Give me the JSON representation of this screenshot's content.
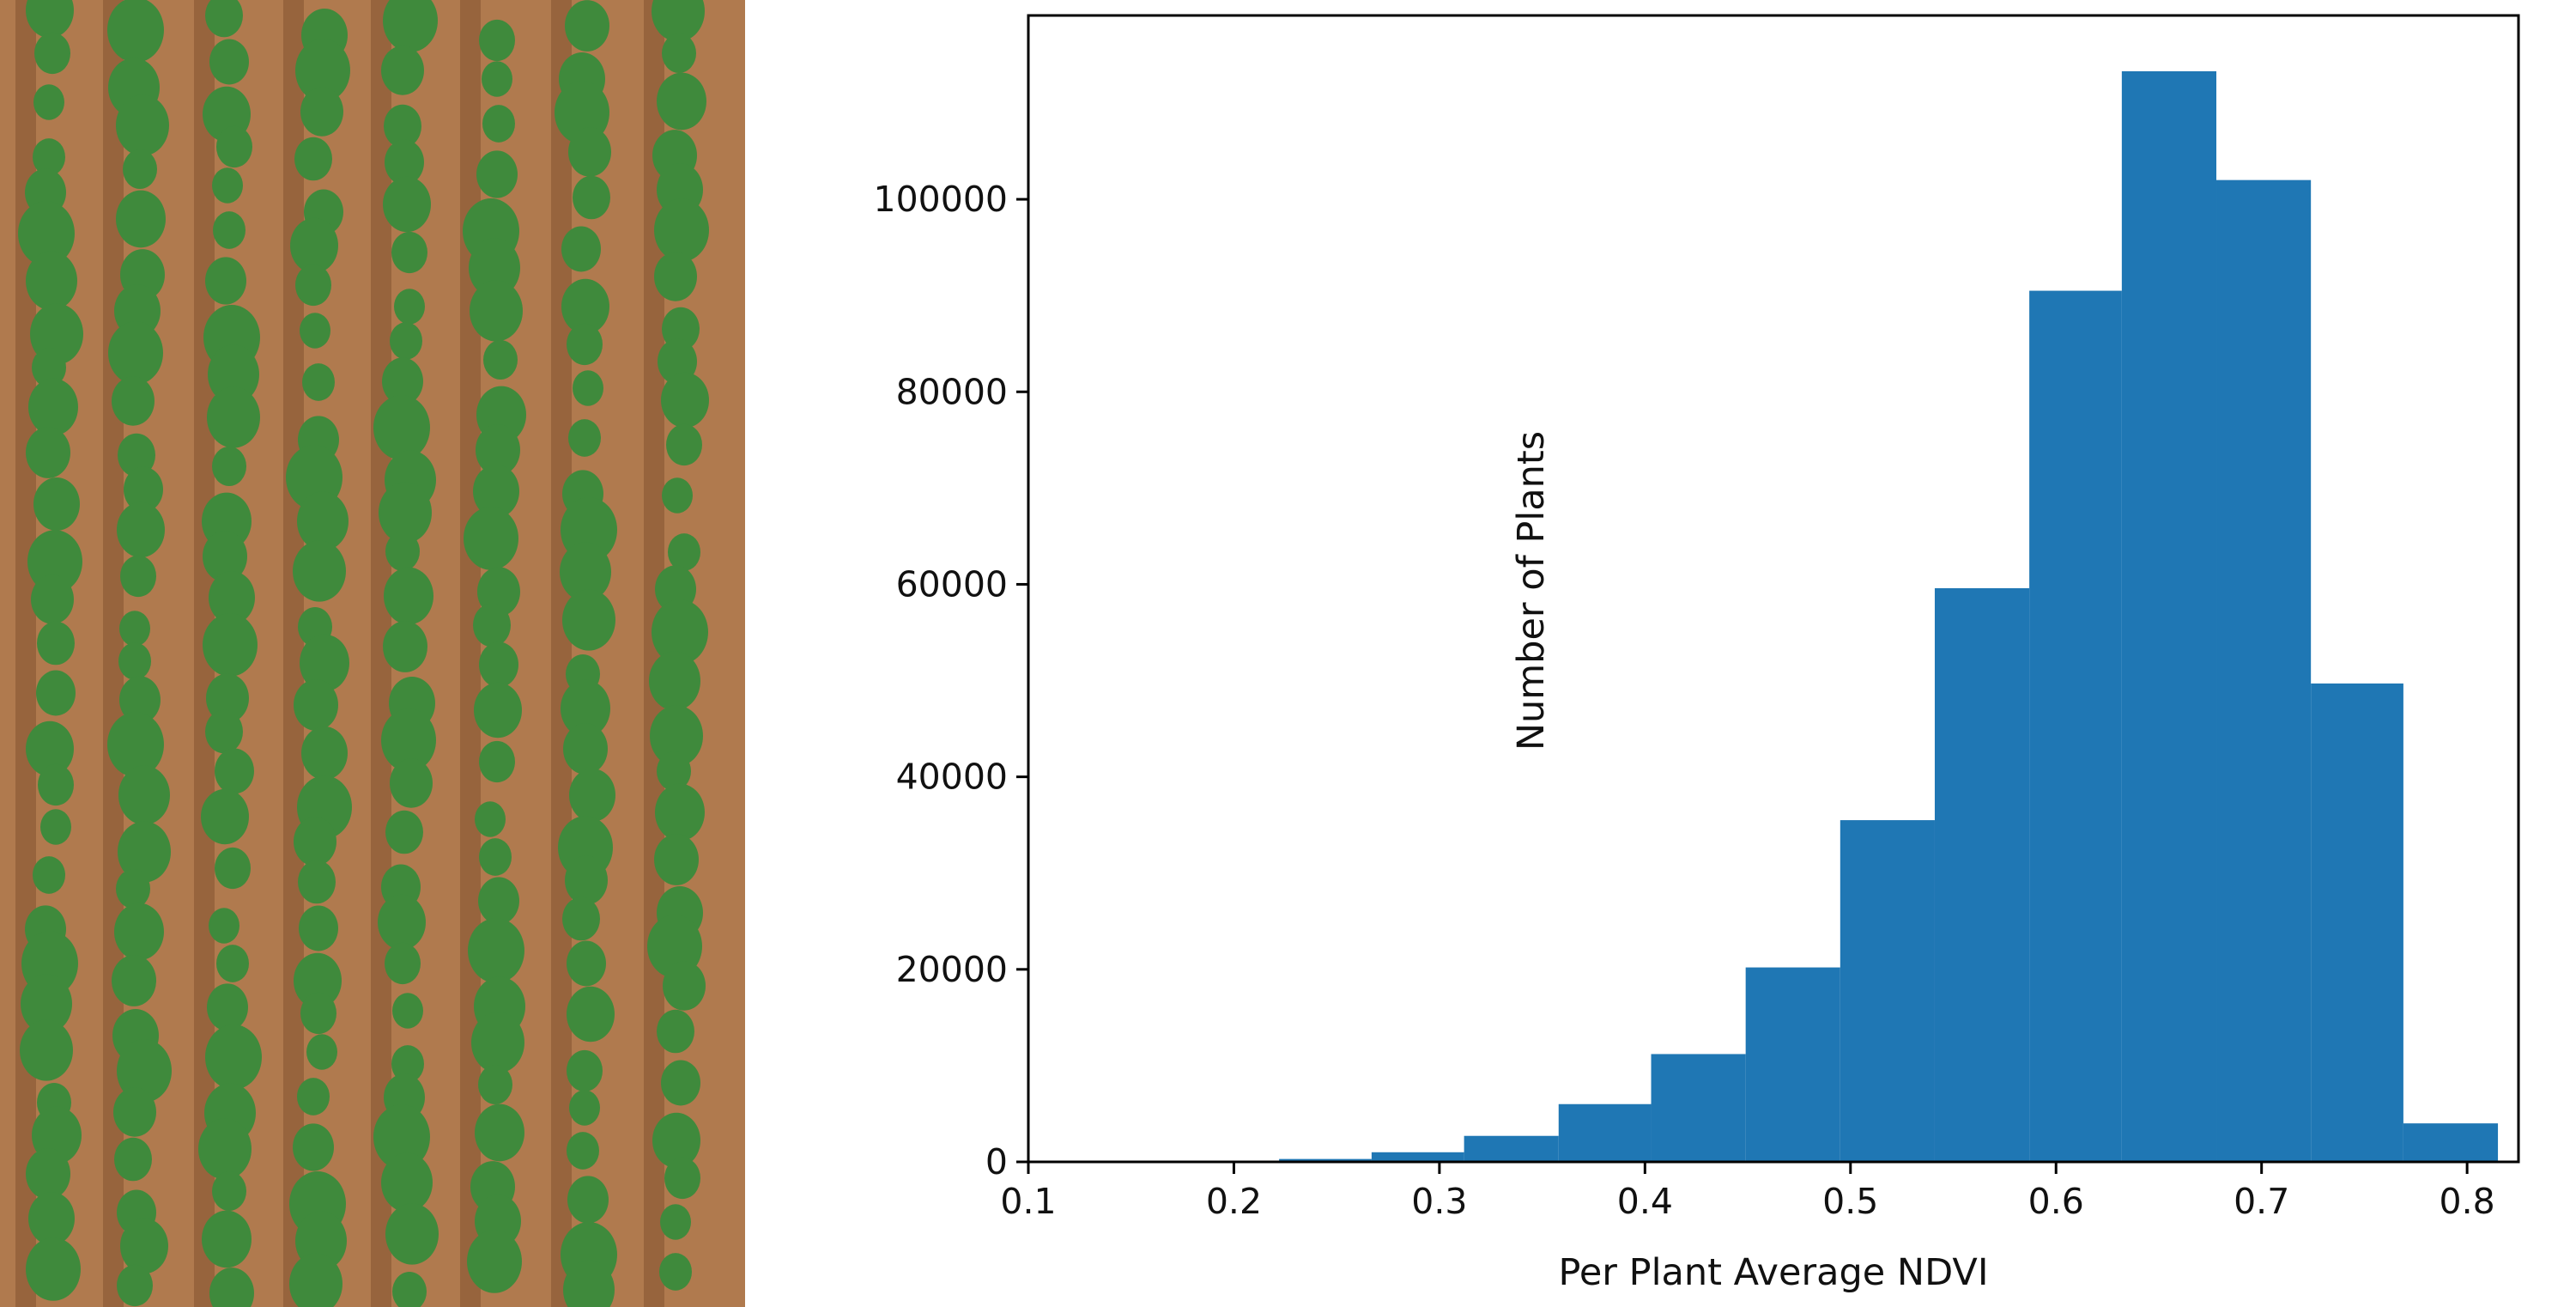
{
  "photo": {
    "soil_color": "#b07a4e",
    "furrow_color": "#7a4a2a",
    "plant_color": "#3f8a3c"
  },
  "chart_data": {
    "type": "bar",
    "xlabel": "Per Plant Average NDVI",
    "ylabel": "Number of Plants",
    "bar_color": "#1f77b4",
    "bin_edges": [
      0.222,
      0.267,
      0.312,
      0.358,
      0.403,
      0.449,
      0.495,
      0.541,
      0.587,
      0.632,
      0.678,
      0.724,
      0.769,
      0.815
    ],
    "values": [
      300,
      1000,
      2700,
      6000,
      11200,
      20200,
      35500,
      59600,
      90500,
      113300,
      102000,
      49700,
      4000
    ],
    "xlim": [
      0.1,
      0.825
    ],
    "ylim": [
      0,
      113300
    ],
    "xticks": [
      0.1,
      0.2,
      0.3,
      0.4,
      0.5,
      0.6,
      0.7,
      0.8
    ],
    "xtick_labels": [
      "0.1",
      "0.2",
      "0.3",
      "0.4",
      "0.5",
      "0.6",
      "0.7",
      "0.8"
    ],
    "yticks": [
      0,
      20000,
      40000,
      60000,
      80000,
      100000
    ],
    "ytick_labels": [
      "0",
      "20000",
      "40000",
      "60000",
      "80000",
      "100000"
    ],
    "grid": false,
    "legend": "none"
  }
}
